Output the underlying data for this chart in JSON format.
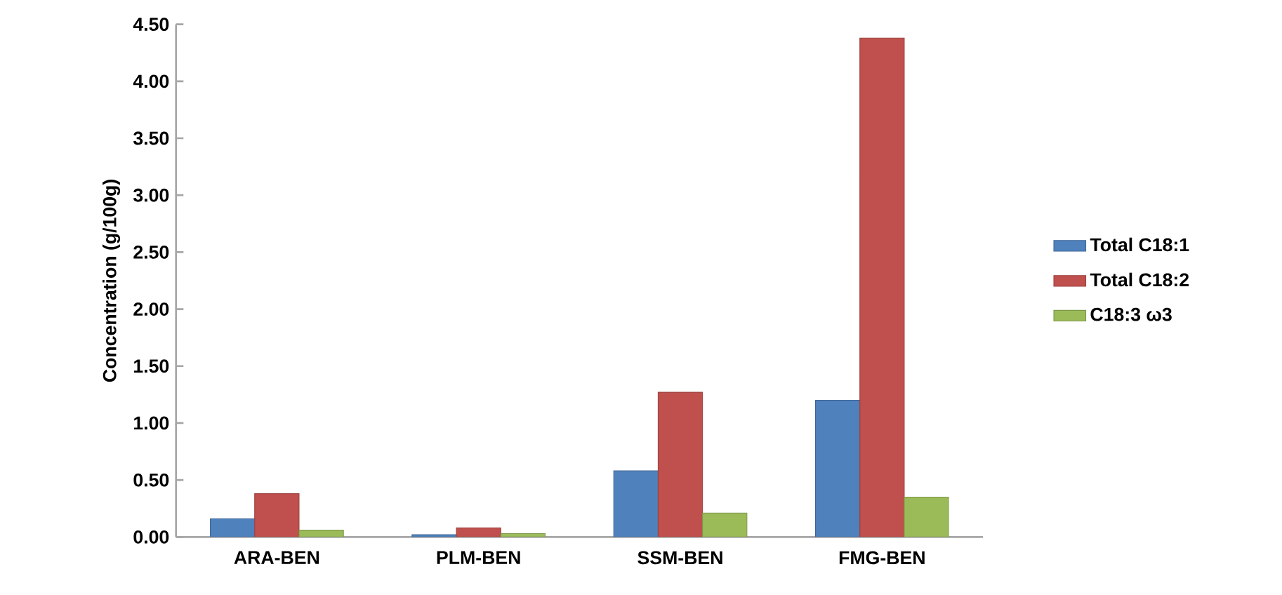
{
  "chart_data": {
    "type": "bar",
    "ylabel": "Concentration  (g/100g)",
    "categories": [
      "ARA-BEN",
      "PLM-BEN",
      "SSM-BEN",
      "FMG-BEN"
    ],
    "series": [
      {
        "name": "Total  C18:1",
        "color": "#4f81bd",
        "values": [
          0.16,
          0.02,
          0.58,
          1.2
        ]
      },
      {
        "name": "Total  C18:2",
        "color": "#c0504d",
        "values": [
          0.38,
          0.08,
          1.27,
          4.38
        ]
      },
      {
        "name": "C18:3 ω3",
        "color": "#9bbb59",
        "values": [
          0.06,
          0.03,
          0.21,
          0.35
        ]
      }
    ],
    "ylim": [
      0,
      4.5
    ],
    "yticks": [
      {
        "value": 0,
        "label": "0.00"
      },
      {
        "value": 0.5,
        "label": "0.50"
      },
      {
        "value": 1,
        "label": "1.00"
      },
      {
        "value": 1.5,
        "label": "1.50"
      },
      {
        "value": 2,
        "label": "2.00"
      },
      {
        "value": 2.5,
        "label": "2.50"
      },
      {
        "value": 3,
        "label": "3.00"
      },
      {
        "value": 3.5,
        "label": "3.50"
      },
      {
        "value": 4,
        "label": "4.00"
      },
      {
        "value": 4.5,
        "label": "4.50"
      }
    ],
    "legend": "right"
  }
}
